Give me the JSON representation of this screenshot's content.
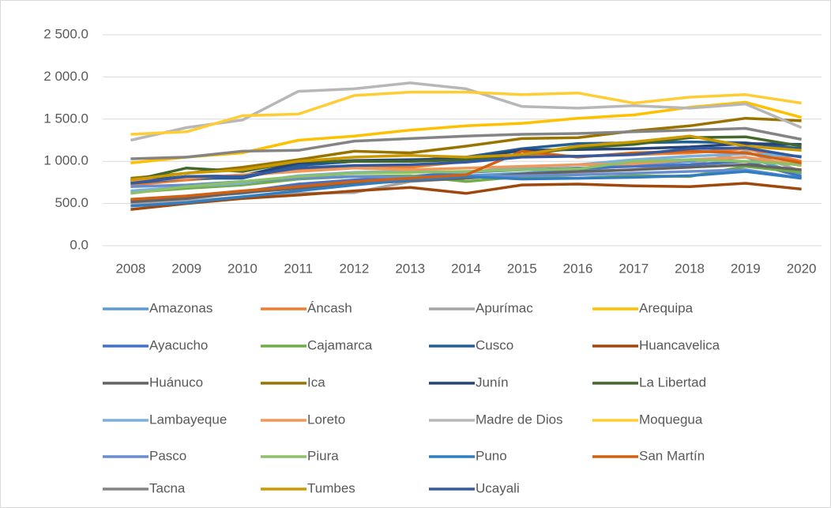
{
  "chart_data": {
    "type": "line",
    "x": [
      2008,
      2009,
      2010,
      2011,
      2012,
      2013,
      2014,
      2015,
      2016,
      2017,
      2018,
      2019,
      2020
    ],
    "ylim": [
      0,
      2500
    ],
    "yticks": [
      {
        "value": 0,
        "label": "0.0"
      },
      {
        "value": 500,
        "label": "500.0"
      },
      {
        "value": 1000,
        "label": "1 000.0"
      },
      {
        "value": 1500,
        "label": "1 500.0"
      },
      {
        "value": 2000,
        "label": "2 000.0"
      },
      {
        "value": 2500,
        "label": "2 500.0"
      }
    ],
    "grid": true,
    "legend": "bottom",
    "series": [
      {
        "name": "Amazonas",
        "color": "#5B9BD5",
        "values": [
          530,
          580,
          620,
          700,
          760,
          800,
          830,
          860,
          900,
          950,
          1000,
          1050,
          850
        ]
      },
      {
        "name": "Áncash",
        "color": "#ED7D31",
        "values": [
          720,
          780,
          820,
          900,
          950,
          930,
          1000,
          1080,
          1060,
          1080,
          1100,
          1150,
          1000
        ]
      },
      {
        "name": "Apurímac",
        "color": "#A5A5A5",
        "values": [
          500,
          530,
          580,
          620,
          630,
          760,
          800,
          850,
          870,
          900,
          960,
          1120,
          880
        ]
      },
      {
        "name": "Arequipa",
        "color": "#FFC000",
        "values": [
          980,
          1050,
          1100,
          1250,
          1300,
          1370,
          1420,
          1450,
          1510,
          1550,
          1640,
          1700,
          1520
        ]
      },
      {
        "name": "Ayacucho",
        "color": "#4472C4",
        "values": [
          540,
          580,
          640,
          730,
          780,
          820,
          870,
          900,
          920,
          940,
          960,
          1000,
          820
        ]
      },
      {
        "name": "Cajamarca",
        "color": "#70AD47",
        "values": [
          630,
          680,
          720,
          790,
          820,
          830,
          760,
          820,
          800,
          830,
          820,
          940,
          870
        ]
      },
      {
        "name": "Cusco",
        "color": "#255E91",
        "values": [
          740,
          800,
          800,
          950,
          1000,
          1010,
          1050,
          1150,
          1210,
          1220,
          1230,
          1220,
          1150
        ]
      },
      {
        "name": "Huancavelica",
        "color": "#9E480E",
        "values": [
          430,
          500,
          560,
          600,
          650,
          690,
          620,
          720,
          730,
          710,
          700,
          740,
          670
        ]
      },
      {
        "name": "Huánuco",
        "color": "#636363",
        "values": [
          520,
          560,
          630,
          680,
          730,
          770,
          800,
          850,
          880,
          900,
          930,
          960,
          900
        ]
      },
      {
        "name": "Ica",
        "color": "#997300",
        "values": [
          800,
          860,
          930,
          1020,
          1120,
          1100,
          1180,
          1270,
          1280,
          1360,
          1420,
          1510,
          1480
        ]
      },
      {
        "name": "Junín",
        "color": "#264478",
        "values": [
          760,
          820,
          830,
          980,
          1010,
          1020,
          1030,
          1130,
          1140,
          1150,
          1170,
          1210,
          1200
        ]
      },
      {
        "name": "La Libertad",
        "color": "#43682B",
        "values": [
          770,
          920,
          880,
          1000,
          1000,
          1000,
          1020,
          1080,
          1160,
          1200,
          1280,
          1290,
          1180
        ]
      },
      {
        "name": "Lambayeque",
        "color": "#7CAFDD",
        "values": [
          650,
          700,
          740,
          830,
          870,
          880,
          870,
          930,
          960,
          1020,
          1060,
          1090,
          1060
        ]
      },
      {
        "name": "Loreto",
        "color": "#F1975A",
        "values": [
          760,
          800,
          840,
          880,
          920,
          900,
          920,
          940,
          960,
          970,
          1020,
          1050,
          950
        ]
      },
      {
        "name": "Madre de Dios",
        "color": "#B7B7B7",
        "values": [
          1250,
          1400,
          1490,
          1830,
          1860,
          1930,
          1860,
          1650,
          1630,
          1660,
          1630,
          1680,
          1400
        ]
      },
      {
        "name": "Moquegua",
        "color": "#FFCD33",
        "values": [
          1320,
          1350,
          1540,
          1560,
          1780,
          1820,
          1820,
          1790,
          1810,
          1690,
          1760,
          1790,
          1690
        ]
      },
      {
        "name": "Pasco",
        "color": "#698ED0",
        "values": [
          700,
          720,
          760,
          800,
          820,
          810,
          820,
          830,
          840,
          860,
          880,
          900,
          800
        ]
      },
      {
        "name": "Piura",
        "color": "#8CC168",
        "values": [
          620,
          700,
          760,
          820,
          860,
          870,
          880,
          900,
          910,
          1000,
          1020,
          1000,
          960
        ]
      },
      {
        "name": "Puno",
        "color": "#327DC2",
        "values": [
          470,
          510,
          580,
          650,
          720,
          780,
          820,
          790,
          800,
          810,
          830,
          880,
          800
        ]
      },
      {
        "name": "San Martín",
        "color": "#D26012",
        "values": [
          550,
          590,
          650,
          700,
          760,
          800,
          840,
          1120,
          1050,
          1100,
          1120,
          1100,
          980
        ]
      },
      {
        "name": "Tacna",
        "color": "#848484",
        "values": [
          1030,
          1050,
          1120,
          1130,
          1240,
          1270,
          1300,
          1320,
          1330,
          1350,
          1370,
          1390,
          1260
        ]
      },
      {
        "name": "Tumbes",
        "color": "#CC9A00",
        "values": [
          780,
          860,
          900,
          1000,
          1050,
          1070,
          1050,
          1080,
          1180,
          1230,
          1300,
          1180,
          1130
        ]
      },
      {
        "name": "Ucayali",
        "color": "#335AA1",
        "values": [
          740,
          820,
          820,
          920,
          950,
          960,
          990,
          1050,
          1060,
          1080,
          1150,
          1160,
          1050
        ]
      }
    ]
  }
}
